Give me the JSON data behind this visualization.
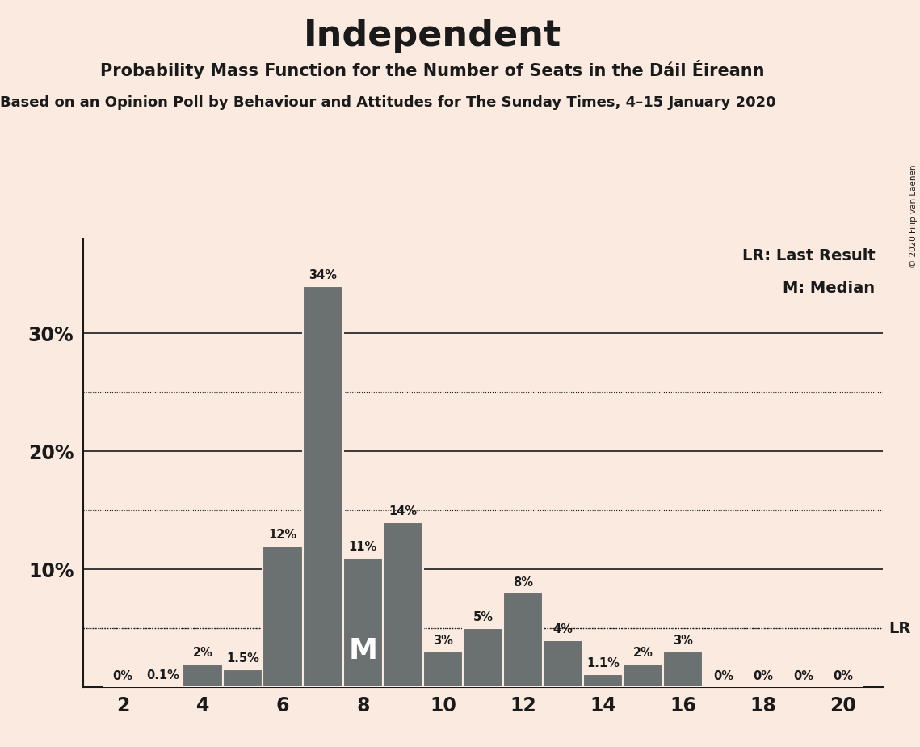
{
  "title": "Independent",
  "subtitle1": "Probability Mass Function for the Number of Seats in the Dáil Éireann",
  "subtitle2": "Based on an Opinion Poll by Behaviour and Attitudes for The Sunday Times, 4–15 January 2020",
  "copyright": "© 2020 Filip van Laenen",
  "background_color": "#faeae0",
  "bar_color": "#6b7070",
  "seats": [
    2,
    3,
    4,
    5,
    6,
    7,
    8,
    9,
    10,
    11,
    12,
    13,
    14,
    15,
    16,
    17,
    18,
    19,
    20
  ],
  "values": [
    0.0,
    0.1,
    2.0,
    1.5,
    12.0,
    34.0,
    11.0,
    14.0,
    3.0,
    5.0,
    8.0,
    4.0,
    1.1,
    2.0,
    3.0,
    0.0,
    0.0,
    0.0,
    0.0
  ],
  "labels": [
    "0%",
    "0.1%",
    "2%",
    "1.5%",
    "12%",
    "34%",
    "11%",
    "14%",
    "3%",
    "5%",
    "8%",
    "4%",
    "1.1%",
    "2%",
    "3%",
    "0%",
    "0%",
    "0%",
    "0%"
  ],
  "median_seat": 8,
  "lr_value": 5.0,
  "yticks": [
    10,
    20,
    30
  ],
  "ytick_labels": [
    "10%",
    "20%",
    "30%"
  ],
  "dotted_yticks": [
    5,
    15,
    25
  ],
  "xlim": [
    1,
    21
  ],
  "ylim": [
    0,
    38
  ],
  "xticks": [
    2,
    4,
    6,
    8,
    10,
    12,
    14,
    16,
    18,
    20
  ],
  "legend_lr": "LR: Last Result",
  "legend_m": "M: Median"
}
